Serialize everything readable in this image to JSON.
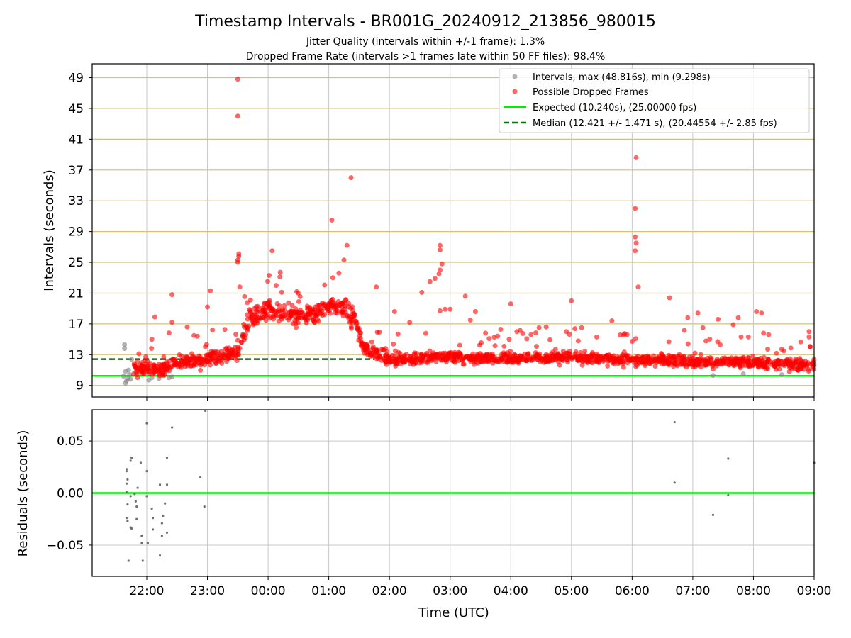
{
  "title": "Timestamp Intervals - BR001G_20240912_213856_980015",
  "subtitle_1": "Jitter Quality (intervals within +/-1 frame): 1.3%",
  "subtitle_2": "Dropped Frame Rate (intervals >1 frames late within 50 FF files): 98.4%",
  "colors": {
    "intervals": "#808080",
    "dropped": "#ff0000",
    "expected": "#00ee00",
    "median": "#007700",
    "hgrid": "#d4c07a",
    "vgrid": "#c8c8c8"
  },
  "chart_data": [
    {
      "type": "scatter",
      "ylabel": "Intervals (seconds)",
      "xlabel": "",
      "xlim": [
        "21:06",
        "09:00"
      ],
      "ylim": [
        7.5,
        50.8
      ],
      "grid": true,
      "legend_position": "top-right",
      "x_ticks": [
        "22:00",
        "23:00",
        "00:00",
        "01:00",
        "02:00",
        "03:00",
        "04:00",
        "05:00",
        "06:00",
        "07:00",
        "08:00",
        "09:00"
      ],
      "y_ticks": [
        9,
        13,
        17,
        21,
        25,
        29,
        33,
        37,
        41,
        45,
        49
      ],
      "series": [
        {
          "name": "Intervals, max (48.816s), min (9.298s)",
          "marker": "circle",
          "points": [
            [
              "21:38",
              14.3
            ],
            [
              "21:38",
              13.8
            ],
            [
              "21:39",
              9.3
            ],
            [
              "21:40",
              9.6
            ],
            [
              "21:37",
              10.2
            ],
            [
              "21:41",
              9.9
            ],
            [
              "21:43",
              10.4
            ],
            [
              "21:45",
              12.4
            ],
            [
              "21:42",
              11.0
            ],
            [
              "21:39",
              10.8
            ],
            [
              "21:44",
              9.8
            ],
            [
              "22:05",
              10.0
            ],
            [
              "22:12",
              9.9
            ],
            [
              "22:25",
              10.1
            ],
            [
              "22:17",
              10.3
            ],
            [
              "22:02",
              9.7
            ],
            [
              "22:22",
              10.0
            ],
            [
              "07:20",
              10.3
            ],
            [
              "07:50",
              10.5
            ],
            [
              "08:28",
              10.4
            ]
          ]
        },
        {
          "name": "Possible Dropped Frames",
          "marker": "circle",
          "band": [
            [
              "21:45",
              11.0,
              0.8
            ],
            [
              "22:00",
              11.2,
              0.8
            ],
            [
              "22:15",
              11.0,
              0.8
            ],
            [
              "22:30",
              12.0,
              0.9
            ],
            [
              "22:45",
              12.2,
              0.9
            ],
            [
              "23:00",
              12.4,
              0.9
            ],
            [
              "23:15",
              12.9,
              0.9
            ],
            [
              "23:30",
              13.3,
              0.8
            ],
            [
              "23:40",
              17.5,
              1.5
            ],
            [
              "23:50",
              18.3,
              1.2
            ],
            [
              "00:00",
              18.8,
              1.2
            ],
            [
              "00:15",
              18.3,
              1.3
            ],
            [
              "00:30",
              17.8,
              1.3
            ],
            [
              "00:45",
              18.2,
              1.3
            ],
            [
              "01:00",
              19.3,
              1.2
            ],
            [
              "01:15",
              19.0,
              1.3
            ],
            [
              "01:25",
              17.8,
              1.5
            ],
            [
              "01:35",
              13.8,
              0.9
            ],
            [
              "01:50",
              13.2,
              0.9
            ],
            [
              "02:00",
              12.3,
              0.7
            ],
            [
              "02:30",
              12.5,
              0.7
            ],
            [
              "03:00",
              12.7,
              0.7
            ],
            [
              "03:30",
              12.6,
              0.7
            ],
            [
              "04:00",
              12.5,
              0.7
            ],
            [
              "04:30",
              12.7,
              0.7
            ],
            [
              "05:00",
              12.7,
              0.7
            ],
            [
              "05:30",
              12.5,
              0.7
            ],
            [
              "06:00",
              12.2,
              0.7
            ],
            [
              "06:30",
              12.4,
              0.7
            ],
            [
              "07:00",
              12.0,
              0.7
            ],
            [
              "07:30",
              12.0,
              0.7
            ],
            [
              "08:00",
              12.0,
              0.7
            ],
            [
              "08:30",
              11.8,
              0.7
            ],
            [
              "09:00",
              11.5,
              0.7
            ]
          ],
          "points": [
            [
              "23:30",
              48.8
            ],
            [
              "23:30",
              44.0
            ],
            [
              "23:31",
              26.1
            ],
            [
              "23:31",
              25.8
            ],
            [
              "23:30",
              25.3
            ],
            [
              "23:30",
              25.0
            ],
            [
              "23:32",
              21.8
            ],
            [
              "00:04",
              26.5
            ],
            [
              "00:01",
              23.3
            ],
            [
              "00:12",
              23.7
            ],
            [
              "00:08",
              22.0
            ],
            [
              "01:03",
              30.5
            ],
            [
              "01:04",
              23.0
            ],
            [
              "01:10",
              23.6
            ],
            [
              "01:15",
              25.3
            ],
            [
              "01:18",
              27.2
            ],
            [
              "01:22",
              36.0
            ],
            [
              "01:47",
              21.8
            ],
            [
              "22:05",
              15.0
            ],
            [
              "22:08",
              17.9
            ],
            [
              "22:25",
              20.8
            ],
            [
              "22:25",
              17.2
            ],
            [
              "22:40",
              16.6
            ],
            [
              "22:50",
              15.4
            ],
            [
              "23:03",
              21.3
            ],
            [
              "23:00",
              19.2
            ],
            [
              "23:05",
              16.2
            ],
            [
              "02:05",
              18.6
            ],
            [
              "02:20",
              17.2
            ],
            [
              "02:32",
              21.1
            ],
            [
              "02:40",
              22.5
            ],
            [
              "02:45",
              22.9
            ],
            [
              "02:49",
              23.5
            ],
            [
              "02:50",
              24.0
            ],
            [
              "02:52",
              24.8
            ],
            [
              "02:50",
              26.6
            ],
            [
              "02:50",
              27.2
            ],
            [
              "02:55",
              18.9
            ],
            [
              "03:00",
              18.9
            ],
            [
              "02:50",
              18.7
            ],
            [
              "03:15",
              20.6
            ],
            [
              "03:20",
              17.5
            ],
            [
              "03:25",
              18.6
            ],
            [
              "03:35",
              15.8
            ],
            [
              "03:50",
              16.3
            ],
            [
              "04:00",
              19.6
            ],
            [
              "04:20",
              15.6
            ],
            [
              "04:35",
              16.6
            ],
            [
              "04:55",
              16.0
            ],
            [
              "05:00",
              20.0
            ],
            [
              "05:10",
              16.5
            ],
            [
              "05:25",
              15.3
            ],
            [
              "05:40",
              17.4
            ],
            [
              "05:55",
              15.6
            ],
            [
              "06:04",
              38.6
            ],
            [
              "06:03",
              32.0
            ],
            [
              "06:03",
              28.3
            ],
            [
              "06:04",
              27.5
            ],
            [
              "06:03",
              26.5
            ],
            [
              "06:06",
              21.8
            ],
            [
              "06:37",
              20.4
            ],
            [
              "06:55",
              17.8
            ],
            [
              "07:05",
              18.4
            ],
            [
              "07:10",
              16.5
            ],
            [
              "07:25",
              17.6
            ],
            [
              "07:40",
              16.9
            ],
            [
              "07:45",
              17.8
            ],
            [
              "07:55",
              15.3
            ],
            [
              "08:03",
              18.6
            ],
            [
              "08:08",
              18.4
            ],
            [
              "08:10",
              15.8
            ],
            [
              "08:15",
              15.6
            ],
            [
              "08:28",
              13.7
            ],
            [
              "08:55",
              16.0
            ],
            [
              "08:55",
              15.3
            ],
            [
              "08:56",
              14.0
            ]
          ]
        },
        {
          "name": "Expected (10.240s), (25.00000 fps)",
          "y": 10.24,
          "style": "solid"
        },
        {
          "name": "Median (12.421 +/- 1.471 s), (20.44554 +/- 2.85 fps)",
          "y": 12.421,
          "x_range": [
            "21:06",
            "01:45"
          ],
          "style": "dashed"
        }
      ]
    },
    {
      "type": "scatter",
      "xlabel": "Time (UTC)",
      "ylabel": "Residuals (seconds)",
      "xlim": [
        "21:06",
        "09:00"
      ],
      "ylim": [
        -0.08,
        0.08
      ],
      "grid": true,
      "x_ticks": [
        "22:00",
        "23:00",
        "00:00",
        "01:00",
        "02:00",
        "03:00",
        "04:00",
        "05:00",
        "06:00",
        "07:00",
        "08:00",
        "09:00"
      ],
      "y_ticks": [
        "0.05",
        "0.00",
        "−0.05"
      ],
      "y_tick_values": [
        0.05,
        0,
        -0.05
      ],
      "series": [
        {
          "name": "Residuals",
          "points": [
            [
              "21:40",
              0.023
            ],
            [
              "21:40",
              0.021
            ],
            [
              "21:41",
              0.013
            ],
            [
              "21:40",
              0.009
            ],
            [
              "21:40",
              0.001
            ],
            [
              "21:41",
              -0.011
            ],
            [
              "21:40",
              -0.024
            ],
            [
              "21:41",
              -0.027
            ],
            [
              "21:42",
              -0.065
            ],
            [
              "21:44",
              0.031
            ],
            [
              "21:45",
              0.034
            ],
            [
              "21:44",
              -0.003
            ],
            [
              "21:44",
              -0.033
            ],
            [
              "21:45",
              -0.034
            ],
            [
              "21:48",
              -0.001
            ],
            [
              "21:49",
              -0.008
            ],
            [
              "21:50",
              -0.013
            ],
            [
              "21:50",
              -0.025
            ],
            [
              "21:51",
              0.005
            ],
            [
              "21:54",
              0.029
            ],
            [
              "21:55",
              -0.041
            ],
            [
              "21:55",
              -0.048
            ],
            [
              "21:56",
              -0.065
            ],
            [
              "22:00",
              0.067
            ],
            [
              "22:00",
              0.021
            ],
            [
              "22:00",
              -0.003
            ],
            [
              "22:01",
              -0.048
            ],
            [
              "22:05",
              -0.015
            ],
            [
              "22:06",
              -0.024
            ],
            [
              "22:06",
              -0.035
            ],
            [
              "22:13",
              0.008
            ],
            [
              "22:13",
              -0.06
            ],
            [
              "22:15",
              -0.029
            ],
            [
              "22:15",
              -0.041
            ],
            [
              "22:16",
              -0.022
            ],
            [
              "22:18",
              -0.01
            ],
            [
              "22:20",
              0.008
            ],
            [
              "22:20",
              0.034
            ],
            [
              "22:20",
              -0.038
            ],
            [
              "22:25",
              0.063
            ],
            [
              "22:53",
              0.015
            ],
            [
              "22:57",
              -0.013
            ],
            [
              "22:58",
              0.079
            ],
            [
              "06:42",
              0.068
            ],
            [
              "06:42",
              0.01
            ],
            [
              "07:20",
              -0.021
            ],
            [
              "07:35",
              0.033
            ],
            [
              "07:35",
              -0.002
            ],
            [
              "09:00",
              0.029
            ]
          ]
        },
        {
          "name": "zero",
          "y": 0,
          "style": "solid"
        }
      ]
    }
  ]
}
